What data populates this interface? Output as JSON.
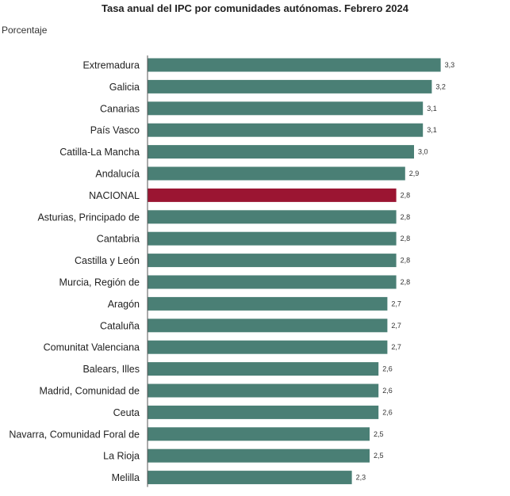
{
  "title": "Tasa anual del IPC por comunidades autónomas. Febrero 2024",
  "subtitle": "Porcentaje",
  "colors": {
    "bar": "#4a7f75",
    "highlight": "#9b1532",
    "axis": "#555555"
  },
  "chart_data": {
    "type": "bar",
    "orientation": "horizontal",
    "title": "Tasa anual del IPC por comunidades autónomas. Febrero 2024",
    "ylabel": "Porcentaje",
    "xlabel": "",
    "grid": false,
    "xlim": [
      0,
      3.3
    ],
    "categories": [
      "Extremadura",
      "Galicia",
      "Canarias",
      "País Vasco",
      "Catilla-La Mancha",
      "Andalucía",
      "NACIONAL",
      "Asturias, Principado de",
      "Cantabria",
      "Castilla y León",
      "Murcia, Región de",
      "Aragón",
      "Cataluña",
      "Comunitat Valenciana",
      "Balears, Illes",
      "Madrid, Comunidad de",
      "Ceuta",
      "Navarra, Comunidad Foral de",
      "La Rioja",
      "Melilla"
    ],
    "values": [
      3.3,
      3.2,
      3.1,
      3.1,
      3.0,
      2.9,
      2.8,
      2.8,
      2.8,
      2.8,
      2.8,
      2.7,
      2.7,
      2.7,
      2.6,
      2.6,
      2.6,
      2.5,
      2.5,
      2.3
    ],
    "value_labels": [
      "3,3",
      "3,2",
      "3,1",
      "3,1",
      "3,0",
      "2,9",
      "2,8",
      "2,8",
      "2,8",
      "2,8",
      "2,8",
      "2,7",
      "2,7",
      "2,7",
      "2,6",
      "2,6",
      "2,6",
      "2,5",
      "2,5",
      "2,3"
    ],
    "highlight": "NACIONAL"
  }
}
